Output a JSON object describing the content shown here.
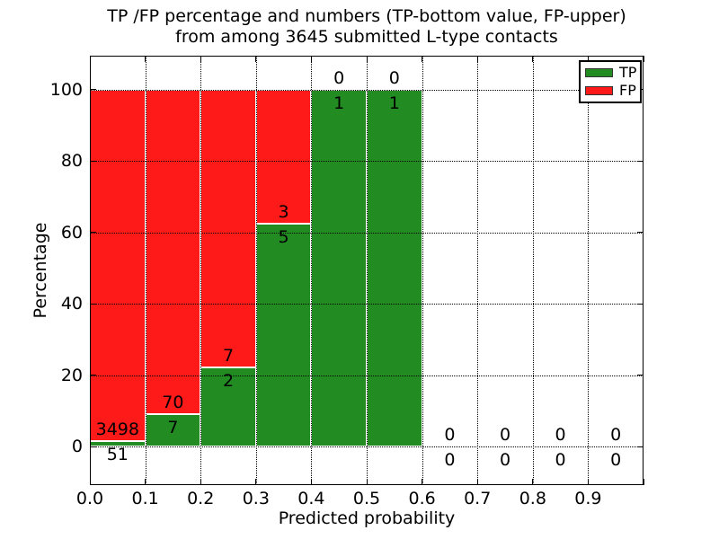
{
  "figure": {
    "title_line1": "TP /FP percentage and numbers (TP-bottom value, FP-upper)",
    "title_line2": "from among 3645 submitted L-type contacts",
    "xlabel": "Predicted probability",
    "ylabel": "Percentage"
  },
  "chart_data": {
    "type": "bar",
    "stacked": true,
    "title": "TP /FP percentage and numbers (TP-bottom value, FP-upper) from among 3645 submitted L-type contacts",
    "xlabel": "Predicted probability",
    "ylabel": "Percentage",
    "total_contacts": 3645,
    "contact_type": "L-type",
    "xlim": [
      0.0,
      1.0
    ],
    "ylim": [
      -11,
      109
    ],
    "bin_width": 0.1,
    "x_tick_labels": [
      "0.0",
      "0.1",
      "0.2",
      "0.3",
      "0.4",
      "0.5",
      "0.6",
      "0.7",
      "0.8",
      "0.9"
    ],
    "y_ticks": [
      0,
      20,
      40,
      60,
      80,
      100
    ],
    "grid": "dotted black, drawn above bars; vertical lines at bin edges, horizontal at y ticks",
    "annotation_rule": "FP count printed above the TP/FP boundary, TP count printed below it",
    "bins": [
      {
        "range": [
          0.0,
          0.1
        ],
        "tp": 51,
        "fp": 3498
      },
      {
        "range": [
          0.1,
          0.2
        ],
        "tp": 7,
        "fp": 70
      },
      {
        "range": [
          0.2,
          0.3
        ],
        "tp": 2,
        "fp": 7
      },
      {
        "range": [
          0.3,
          0.4
        ],
        "tp": 5,
        "fp": 3
      },
      {
        "range": [
          0.4,
          0.5
        ],
        "tp": 1,
        "fp": 0
      },
      {
        "range": [
          0.5,
          0.6
        ],
        "tp": 1,
        "fp": 0
      },
      {
        "range": [
          0.6,
          0.7
        ],
        "tp": 0,
        "fp": 0
      },
      {
        "range": [
          0.7,
          0.8
        ],
        "tp": 0,
        "fp": 0
      },
      {
        "range": [
          0.8,
          0.9
        ],
        "tp": 0,
        "fp": 0
      },
      {
        "range": [
          0.9,
          1.0
        ],
        "tp": 0,
        "fp": 0
      }
    ],
    "colors": {
      "tp": "#228b22",
      "fp": "#ff1a1a",
      "bar_edge": "#ffffff",
      "text": "#000000",
      "background": "#ffffff"
    },
    "legend": {
      "position": "upper right",
      "entries": [
        {
          "label": "TP",
          "color": "#228b22"
        },
        {
          "label": "FP",
          "color": "#ff1a1a"
        }
      ]
    }
  }
}
